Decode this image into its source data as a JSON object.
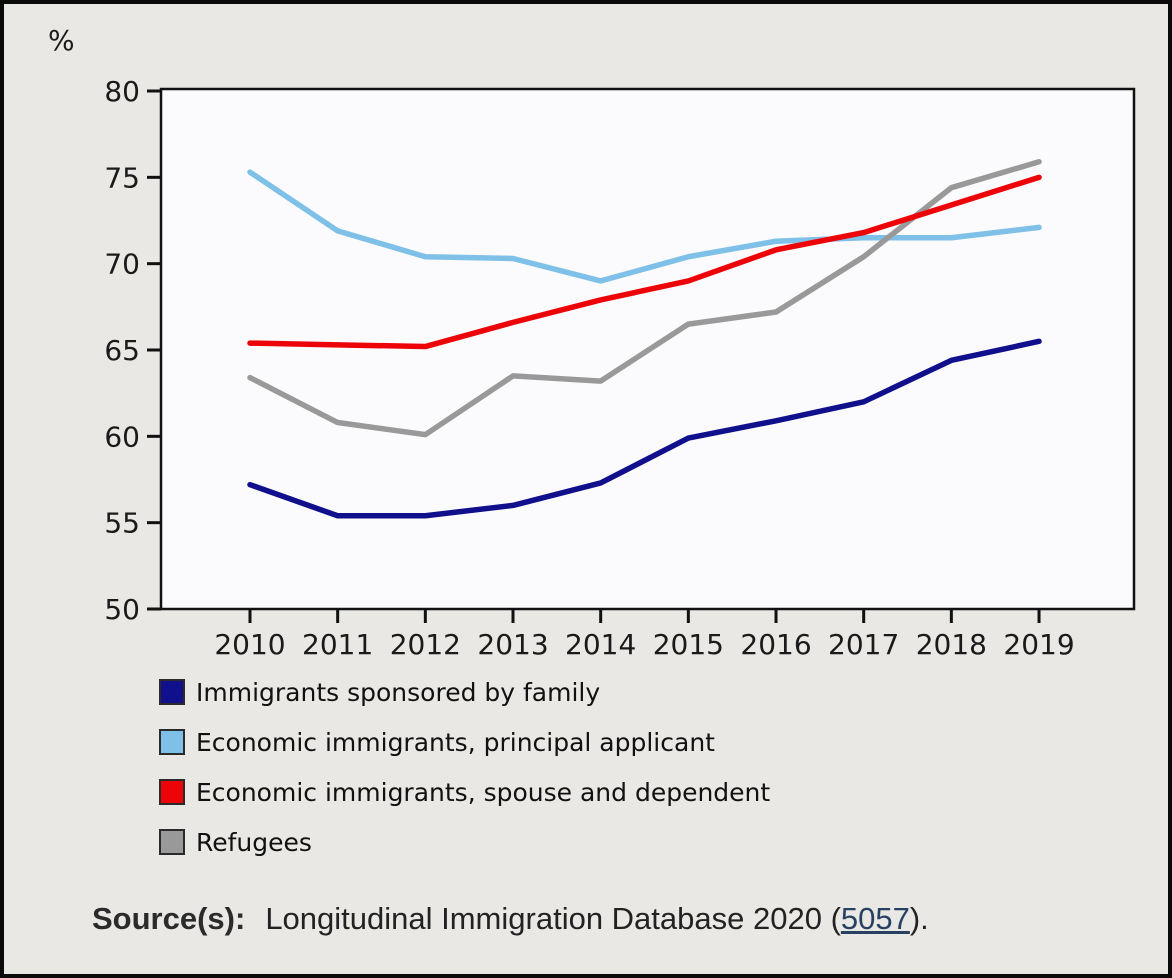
{
  "unit_label": "%",
  "chart_data": {
    "type": "line",
    "x": [
      2010,
      2011,
      2012,
      2013,
      2014,
      2015,
      2016,
      2017,
      2018,
      2019
    ],
    "ylim": [
      50,
      80
    ],
    "ytick_step": 5,
    "grid": false,
    "legend_position": "bottom-left",
    "series": [
      {
        "name": "Immigrants sponsored by family",
        "color": "#10108c",
        "values": [
          57.2,
          55.4,
          55.4,
          56.0,
          57.3,
          59.9,
          60.9,
          62.0,
          64.4,
          65.5
        ]
      },
      {
        "name": "Economic immigrants, principal applicant",
        "color": "#7fc0e8",
        "values": [
          75.3,
          71.9,
          70.4,
          70.3,
          69.0,
          70.4,
          71.3,
          71.5,
          71.5,
          72.1
        ]
      },
      {
        "name": "Economic immigrants, spouse and dependent",
        "color": "#ec0408",
        "values": [
          65.4,
          65.3,
          65.2,
          66.6,
          67.9,
          69.0,
          70.8,
          71.8,
          73.4,
          75.0
        ]
      },
      {
        "name": "Refugees",
        "color": "#999999",
        "values": [
          63.4,
          60.8,
          60.1,
          63.5,
          63.2,
          66.5,
          67.2,
          70.4,
          74.4,
          75.9
        ]
      }
    ]
  },
  "source": {
    "label": "Source(s):",
    "text_before_link": "Longitudinal Immigration Database 2020 (",
    "link_text": "5057",
    "text_after_link": ")."
  }
}
